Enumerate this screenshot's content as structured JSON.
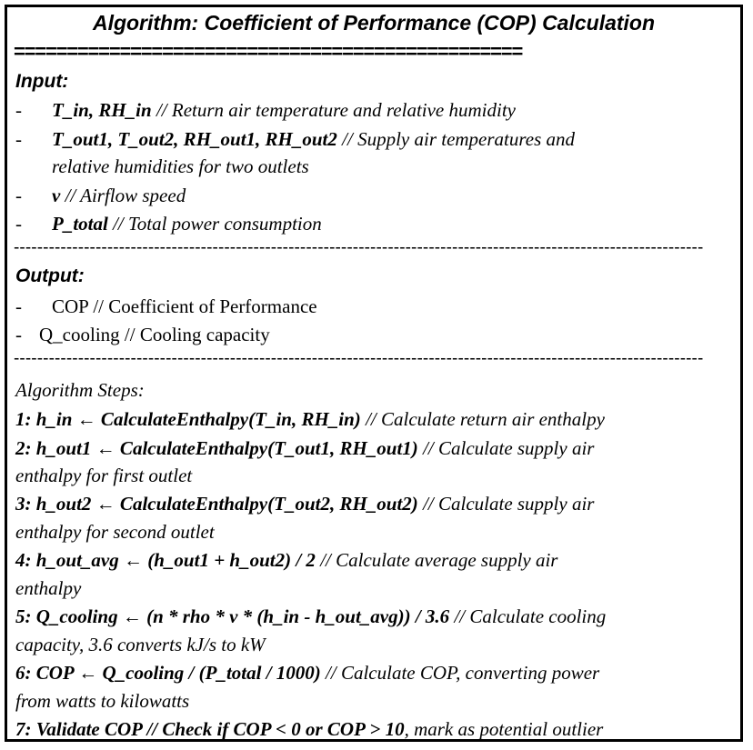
{
  "title": "Algorithm: Coefficient of Performance (COP) Calculation",
  "double_rule": "================================================",
  "dash_rule": "----------------------------------------------------------------------------------------------------------------------",
  "input": {
    "heading": "Input:",
    "items": [
      {
        "dash": "-",
        "name": "T_in, RH_in",
        "desc": " // Return air temperature and relative humidity"
      },
      {
        "dash": "-",
        "name": "T_out1, T_out2, RH_out1, RH_out2",
        "desc": " // Supply air temperatures and",
        "cont": "relative humidities for two outlets"
      },
      {
        "dash": "-",
        "name": "v",
        "desc": " // Airflow speed"
      },
      {
        "dash": "-",
        "name": "P_total",
        "desc": " // Total power consumption"
      }
    ]
  },
  "output": {
    "heading": "Output:",
    "items": [
      {
        "dash": "-",
        "text": "COP // Coefficient  of Performance"
      },
      {
        "dash": "-",
        "text": "Q_cooling  // Cooling  capacity"
      }
    ]
  },
  "steps": {
    "heading": "Algorithm Steps:",
    "items": [
      {
        "code": "1: h_in ← CalculateEnthalpy(T_in, RH_in)",
        "comment": " // Calculate return air enthalpy"
      },
      {
        "code": "2: h_out1 ← CalculateEnthalpy(T_out1, RH_out1)",
        "comment": " // Calculate supply air",
        "cont": "enthalpy for first outlet"
      },
      {
        "code": "3: h_out2 ← CalculateEnthalpy(T_out2, RH_out2)",
        "comment": " // Calculate supply air",
        "cont": "enthalpy for second outlet"
      },
      {
        "code": "4: h_out_avg ← (h_out1 + h_out2) / 2",
        "comment": " // Calculate average supply air",
        "cont": "enthalpy"
      },
      {
        "code": "5: Q_cooling ← (n * rho * v * (h_in - h_out_avg)) / 3.6",
        "comment": " // Calculate cooling",
        "cont": "capacity, 3.6 converts kJ/s to kW"
      },
      {
        "code": "6: COP ← Q_cooling / (P_total / 1000)",
        "comment": " // Calculate COP,  converting power",
        "cont": "from watts to kilowatts"
      },
      {
        "code": "7: Validate COP // Check if COP < 0 or COP > 10",
        "comment": ", mark as potential outlier"
      }
    ]
  }
}
